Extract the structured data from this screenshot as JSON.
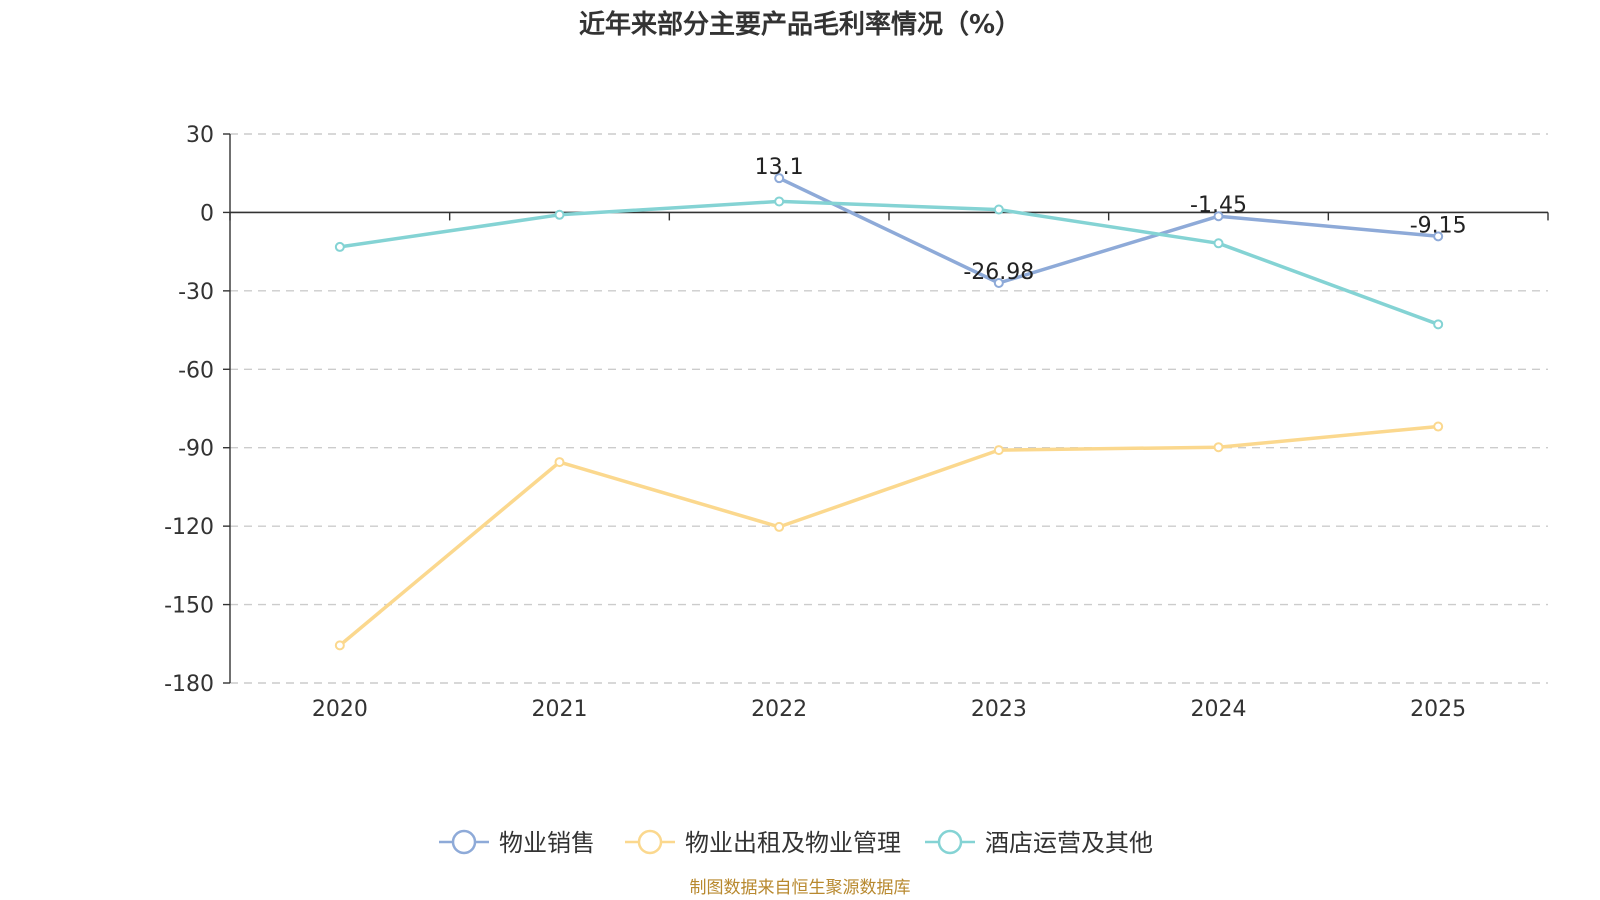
{
  "title": "近年来部分主要产品毛利率情况（%）",
  "source": "制图数据来自恒生聚源数据库",
  "chart_data": {
    "type": "line",
    "title": "近年来部分主要产品毛利率情况（%）",
    "xlabel": "",
    "ylabel": "",
    "categories": [
      "2020",
      "2021",
      "2022",
      "2023",
      "2024",
      "2025"
    ],
    "ylim": [
      -180,
      30
    ],
    "yticks": [
      30,
      0,
      -30,
      -60,
      -90,
      -120,
      -150,
      -180
    ],
    "ytick_labels": [
      "30",
      "0",
      "-30",
      "-60",
      "-90",
      "-120",
      "-150",
      "-180"
    ],
    "grid": true,
    "legend_position": "bottom",
    "series": [
      {
        "name": "物业销售",
        "color": "#8eaad8",
        "values": [
          null,
          null,
          13.1,
          -26.98,
          -1.45,
          -9.15
        ],
        "labels": [
          "",
          "",
          "13.1",
          "-26.98",
          "-1.45",
          "-9.15"
        ]
      },
      {
        "name": "物业出租及物业管理",
        "color": "#fbd88e",
        "values": [
          -165.6,
          -95.5,
          -120.3,
          -90.9,
          -89.8,
          -81.9
        ],
        "labels": [
          "",
          "",
          "",
          "",
          "",
          ""
        ]
      },
      {
        "name": "酒店运营及其他",
        "color": "#84d3d4",
        "values": [
          -13.2,
          -0.9,
          4.2,
          1.1,
          -11.8,
          -42.8
        ],
        "labels": [
          "",
          "",
          "",
          "",
          "",
          ""
        ]
      }
    ]
  }
}
